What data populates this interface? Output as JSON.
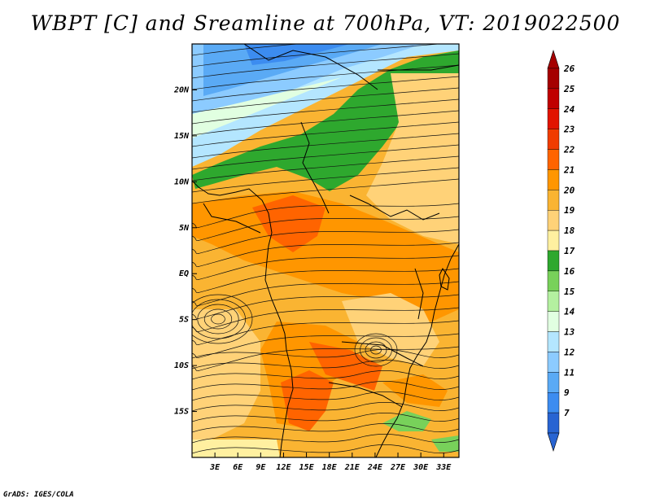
{
  "title": "WBPT [C] and Sreamline at 700hPa, VT: 2019022500",
  "credit": "GrADS: IGES/COLA",
  "map": {
    "type": "filled-contour-streamline",
    "variable": "Wet-bulb potential temperature",
    "units": "C",
    "level": "700hPa",
    "valid_time": "2019022500",
    "lon_range": [
      0,
      35
    ],
    "lat_range": [
      -20,
      25
    ],
    "lat_ticks": [
      {
        "value": 20,
        "label": "20N"
      },
      {
        "value": 15,
        "label": "15N"
      },
      {
        "value": 10,
        "label": "10N"
      },
      {
        "value": 5,
        "label": "5N"
      },
      {
        "value": 0,
        "label": "EQ"
      },
      {
        "value": -5,
        "label": "5S"
      },
      {
        "value": -10,
        "label": "10S"
      },
      {
        "value": -15,
        "label": "15S"
      }
    ],
    "lon_ticks": [
      {
        "value": 3,
        "label": "3E"
      },
      {
        "value": 6,
        "label": "6E"
      },
      {
        "value": 9,
        "label": "9E"
      },
      {
        "value": 12,
        "label": "12E"
      },
      {
        "value": 15,
        "label": "15E"
      },
      {
        "value": 18,
        "label": "18E"
      },
      {
        "value": 21,
        "label": "21E"
      },
      {
        "value": 24,
        "label": "24E"
      },
      {
        "value": 27,
        "label": "27E"
      },
      {
        "value": 30,
        "label": "30E"
      },
      {
        "value": 33,
        "label": "33E"
      }
    ]
  },
  "colorbar": {
    "levels": [
      {
        "label": "26",
        "color": "#a50000"
      },
      {
        "label": "25",
        "color": "#c00000"
      },
      {
        "label": "24",
        "color": "#e11400"
      },
      {
        "label": "23",
        "color": "#f03c00"
      },
      {
        "label": "22",
        "color": "#ff6400"
      },
      {
        "label": "21",
        "color": "#ff9600"
      },
      {
        "label": "20",
        "color": "#fab432"
      },
      {
        "label": "19",
        "color": "#ffd278"
      },
      {
        "label": "18",
        "color": "#fff0a0"
      },
      {
        "label": "17",
        "color": "#2ea82e"
      },
      {
        "label": "16",
        "color": "#78d15a"
      },
      {
        "label": "15",
        "color": "#b4f0a0"
      },
      {
        "label": "14",
        "color": "#e1ffe1"
      },
      {
        "label": "13",
        "color": "#b4e6ff"
      },
      {
        "label": "12",
        "color": "#8ccbff"
      },
      {
        "label": "11",
        "color": "#5aaaf5"
      },
      {
        "label": "9",
        "color": "#3c8cf0"
      },
      {
        "label": "7",
        "color": "#2864d2"
      }
    ],
    "top_arrow_color": "#a50000",
    "bottom_arrow_color": "#2864d2"
  }
}
